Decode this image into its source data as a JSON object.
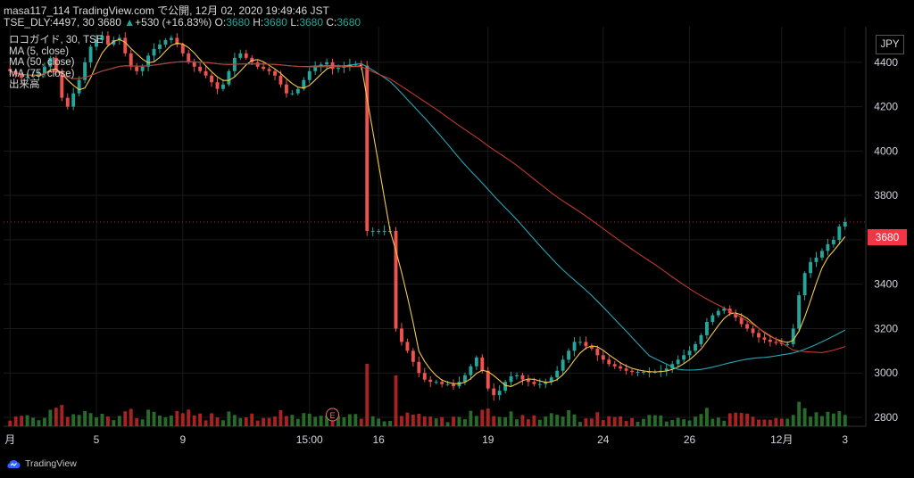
{
  "header": {
    "line1": "masa117_114 TradingView.com で公開, 12月 02, 2020 19:49:46 JST",
    "symbol": "TSE_DLY:4497, 30",
    "last": "3680",
    "arrow": "▲",
    "change": "+530 (+16.83%)",
    "o_label": "O:",
    "o_val": "3680",
    "h_label": "H:",
    "h_val": "3680",
    "l_label": "L:",
    "l_val": "3680",
    "c_label": "C:",
    "c_val": "3680"
  },
  "legend": {
    "title": "ロコガイド, 30, TSE",
    "ma5": "MA (5, close)",
    "ma50": "MA (50, close)",
    "ma75": "MA (75, close)",
    "volume": "出来高"
  },
  "currency": "JPY",
  "last_price_tag": "3680",
  "earnings_marker": "E",
  "footer": {
    "brand": "TradingView"
  },
  "colors": {
    "up": "#26a69a",
    "down": "#ef5350",
    "ma5": "#f2c94c",
    "ma50": "#26a6b6",
    "ma75": "#c0392b",
    "vol_up": "#2e7d32",
    "vol_down": "#c62828",
    "grid": "#1a1a1a"
  },
  "chart_data": {
    "type": "candlestick",
    "title": "ロコガイド, 30, TSE",
    "interval": "30",
    "ylim": [
      2800,
      4560
    ],
    "y_ticks": [
      2800,
      3000,
      3200,
      3400,
      3600,
      3800,
      4000,
      4200,
      4400
    ],
    "x_ticks": [
      "月",
      "5",
      "9",
      "15:00",
      "16",
      "19",
      "24",
      "26",
      "12月",
      "3"
    ],
    "grid": true,
    "legend_placement": "top-left",
    "last_value": 3680,
    "closes": [
      4360,
      4345,
      4330,
      4335,
      4340,
      4350,
      4380,
      4420,
      4360,
      4240,
      4200,
      4260,
      4320,
      4400,
      4470,
      4500,
      4520,
      4480,
      4500,
      4510,
      4440,
      4380,
      4360,
      4380,
      4430,
      4460,
      4480,
      4500,
      4510,
      4480,
      4440,
      4400,
      4380,
      4360,
      4340,
      4310,
      4280,
      4300,
      4360,
      4420,
      4440,
      4420,
      4400,
      4380,
      4370,
      4360,
      4340,
      4300,
      4260,
      4260,
      4280,
      4320,
      4360,
      4380,
      4390,
      4400,
      4370,
      4375,
      4380,
      4390,
      4390,
      4385,
      3640,
      3640,
      3640,
      3640,
      3640,
      3200,
      3140,
      3100,
      3050,
      3000,
      2970,
      2960,
      2960,
      2950,
      2950,
      2940,
      2960,
      2990,
      3030,
      3070,
      3010,
      2930,
      2900,
      2920,
      2960,
      2985,
      2990,
      2970,
      2960,
      2950,
      2950,
      2960,
      2980,
      3010,
      3060,
      3100,
      3140,
      3140,
      3120,
      3110,
      3080,
      3060,
      3040,
      3030,
      3020,
      3010,
      3005,
      3005,
      3005,
      3005,
      3005,
      3010,
      3020,
      3040,
      3060,
      3080,
      3100,
      3130,
      3170,
      3230,
      3260,
      3280,
      3290,
      3270,
      3250,
      3220,
      3200,
      3180,
      3160,
      3150,
      3140,
      3135,
      3130,
      3130,
      3200,
      3350,
      3450,
      3500,
      3520,
      3550,
      3580,
      3600,
      3660,
      3680
    ]
  }
}
